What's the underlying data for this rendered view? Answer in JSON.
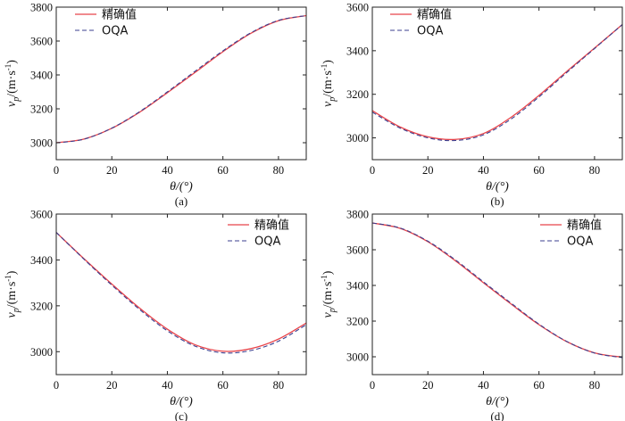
{
  "chart_data": [
    {
      "type": "line",
      "caption": "(a)",
      "xlabel": "θ/(°)",
      "ylabel": "vp/(m·s⁻¹)",
      "ylabel_main": "v",
      "ylabel_sub": "p",
      "ylabel_unit": "/(m·s",
      "ylabel_exp": "-1",
      "ylabel_close": ")",
      "xlim": [
        0,
        90
      ],
      "ylim": [
        2900,
        3800
      ],
      "xticks": [
        "0",
        "20",
        "40",
        "60",
        "80"
      ],
      "yticks": [
        "3000",
        "3200",
        "3400",
        "3600",
        "3800"
      ],
      "legend_position": "top-left",
      "series": [
        {
          "name": "精确值",
          "style": "solid",
          "color": "#e8444a",
          "x": [
            0,
            10,
            20,
            30,
            40,
            50,
            60,
            70,
            80,
            90
          ],
          "values": [
            3000,
            3022,
            3085,
            3180,
            3295,
            3415,
            3537,
            3645,
            3720,
            3750
          ]
        },
        {
          "name": "OQA",
          "style": "dashed",
          "color": "#3b3f8f",
          "x": [
            0,
            10,
            20,
            30,
            40,
            50,
            60,
            70,
            80,
            90
          ],
          "values": [
            2999,
            3021,
            3086,
            3183,
            3300,
            3422,
            3542,
            3648,
            3722,
            3750
          ]
        }
      ]
    },
    {
      "type": "line",
      "caption": "(b)",
      "xlabel": "θ/(°)",
      "ylabel": "vp/(m·s⁻¹)",
      "ylabel_main": "v",
      "ylabel_sub": "p",
      "ylabel_unit": "/(m·s",
      "ylabel_exp": "-1",
      "ylabel_close": ")",
      "xlim": [
        0,
        90
      ],
      "ylim": [
        2900,
        3600
      ],
      "xticks": [
        "0",
        "20",
        "40",
        "60",
        "80"
      ],
      "yticks": [
        "3000",
        "3200",
        "3400",
        "3600"
      ],
      "legend_position": "top-right",
      "series": [
        {
          "name": "精确值",
          "style": "solid",
          "color": "#e8444a",
          "x": [
            0,
            10,
            20,
            30,
            40,
            50,
            60,
            70,
            80,
            90
          ],
          "values": [
            3125,
            3050,
            3005,
            2993,
            3020,
            3095,
            3195,
            3305,
            3412,
            3520
          ]
        },
        {
          "name": "OQA",
          "style": "dashed",
          "color": "#3b3f8f",
          "x": [
            0,
            10,
            20,
            30,
            40,
            50,
            60,
            70,
            80,
            90
          ],
          "values": [
            3118,
            3045,
            3000,
            2988,
            3014,
            3087,
            3188,
            3300,
            3410,
            3520
          ]
        }
      ]
    },
    {
      "type": "line",
      "caption": "(c)",
      "xlabel": "θ/(°)",
      "ylabel": "vp/(m·s⁻¹)",
      "ylabel_main": "v",
      "ylabel_sub": "p",
      "ylabel_unit": "/(m·s",
      "ylabel_exp": "-1",
      "ylabel_close": ")",
      "xlim": [
        0,
        90
      ],
      "ylim": [
        2900,
        3600
      ],
      "xticks": [
        "0",
        "20",
        "40",
        "60",
        "80"
      ],
      "yticks": [
        "3000",
        "3200",
        "3400",
        "3600"
      ],
      "legend_position": "top-right",
      "series": [
        {
          "name": "精确值",
          "style": "solid",
          "color": "#e8444a",
          "x": [
            0,
            10,
            20,
            30,
            40,
            50,
            60,
            70,
            80,
            90
          ],
          "values": [
            3520,
            3405,
            3295,
            3190,
            3098,
            3030,
            3002,
            3013,
            3055,
            3125
          ]
        },
        {
          "name": "OQA",
          "style": "dashed",
          "color": "#3b3f8f",
          "x": [
            0,
            10,
            20,
            30,
            40,
            50,
            60,
            70,
            80,
            90
          ],
          "values": [
            3520,
            3403,
            3290,
            3184,
            3091,
            3024,
            2995,
            3005,
            3046,
            3118
          ]
        }
      ]
    },
    {
      "type": "line",
      "caption": "(d)",
      "xlabel": "θ/(°)",
      "ylabel": "vp/(m·s⁻¹)",
      "ylabel_main": "v",
      "ylabel_sub": "p",
      "ylabel_unit": "/(m·s",
      "ylabel_exp": "-1",
      "ylabel_close": ")",
      "xlim": [
        0,
        90
      ],
      "ylim": [
        2900,
        3800
      ],
      "xticks": [
        "0",
        "20",
        "40",
        "60",
        "80"
      ],
      "yticks": [
        "3000",
        "3200",
        "3400",
        "3600",
        "3800"
      ],
      "legend_position": "top-right",
      "series": [
        {
          "name": "精确值",
          "style": "solid",
          "color": "#e8444a",
          "x": [
            0,
            10,
            20,
            30,
            40,
            50,
            60,
            70,
            80,
            90
          ],
          "values": [
            3750,
            3720,
            3645,
            3537,
            3415,
            3295,
            3180,
            3085,
            3022,
            2998
          ]
        },
        {
          "name": "OQA",
          "style": "dashed",
          "color": "#3b3f8f",
          "x": [
            0,
            10,
            20,
            30,
            40,
            50,
            60,
            70,
            80,
            90
          ],
          "values": [
            3750,
            3722,
            3648,
            3542,
            3420,
            3300,
            3183,
            3086,
            3021,
            2995
          ]
        }
      ]
    }
  ]
}
